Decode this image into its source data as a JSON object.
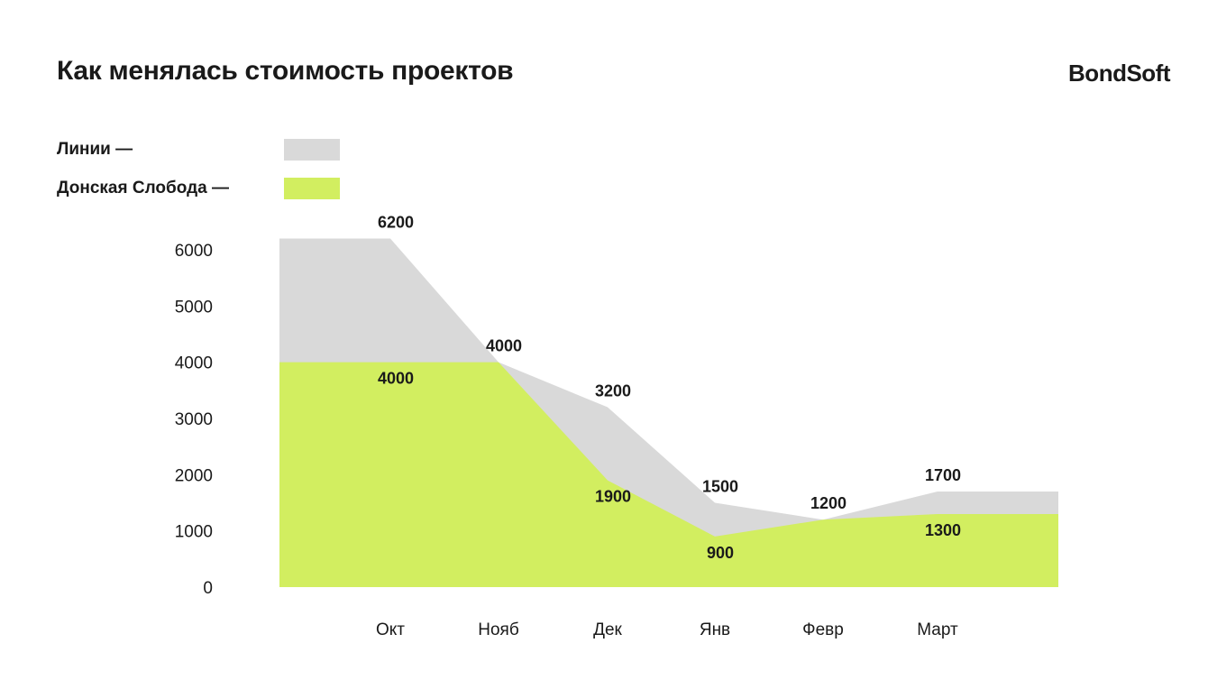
{
  "header": {
    "title": "Как менялась стоимость проектов",
    "logo": "BondSoft"
  },
  "legend": [
    {
      "label": "Линии —",
      "color": "#d9d9d9"
    },
    {
      "label": "Донская Слобода —",
      "color": "#d2ee60"
    }
  ],
  "chart_data": {
    "type": "area",
    "categories": [
      "Окт",
      "Нояб",
      "Дек",
      "Янв",
      "Февр",
      "Март"
    ],
    "y_ticks": [
      0,
      1000,
      2000,
      3000,
      4000,
      5000,
      6000
    ],
    "ylim": [
      0,
      6000
    ],
    "grid": false,
    "legend_position": "top-left",
    "series": [
      {
        "name": "Линии",
        "color": "#d9d9d9",
        "values": [
          6200,
          4000,
          3200,
          1500,
          1200,
          1700
        ]
      },
      {
        "name": "Донская Слобода",
        "color": "#d2ee60",
        "values": [
          4000,
          4000,
          1900,
          900,
          1200,
          1300
        ]
      }
    ]
  }
}
